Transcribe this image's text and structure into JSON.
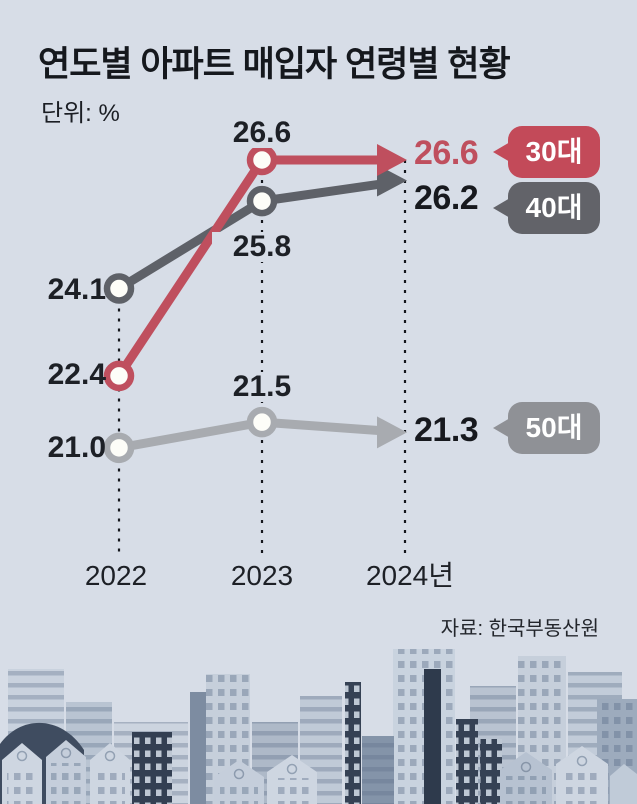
{
  "header": {
    "title": "연도별 아파트 매입자 연령별 현황",
    "unit_label": "단위: %"
  },
  "source": "자료: 한국부동산원",
  "chart_data": {
    "type": "line",
    "title": "연도별 아파트 매입자 연령별 현황",
    "unit": "%",
    "categories": [
      "2022",
      "2023",
      "2024년"
    ],
    "ylim": [
      20.5,
      27.5
    ],
    "grid": false,
    "legend_position": "right-badges",
    "series": [
      {
        "name": "30대",
        "color": "#bf4f5e",
        "values": [
          22.4,
          26.6,
          26.6
        ],
        "labels": [
          "22.4",
          "26.6",
          "26.6"
        ]
      },
      {
        "name": "40대",
        "color": "#5e6168",
        "values": [
          24.1,
          25.8,
          26.2
        ],
        "labels": [
          "24.1",
          "25.8",
          "26.2"
        ]
      },
      {
        "name": "50대",
        "color": "#a8abb0",
        "values": [
          21.0,
          21.5,
          21.3
        ],
        "labels": [
          "21.0",
          "21.5",
          "21.3"
        ]
      }
    ]
  },
  "badges": [
    {
      "label": "30대",
      "color": "#c34a59"
    },
    {
      "label": "40대",
      "color": "#626369"
    },
    {
      "label": "50대",
      "color": "#8f9196"
    }
  ],
  "colors": {
    "background": "#d7dde7",
    "text": "#1b1e24",
    "dash": "#14171d",
    "accent_red": "#bf4f5e"
  }
}
